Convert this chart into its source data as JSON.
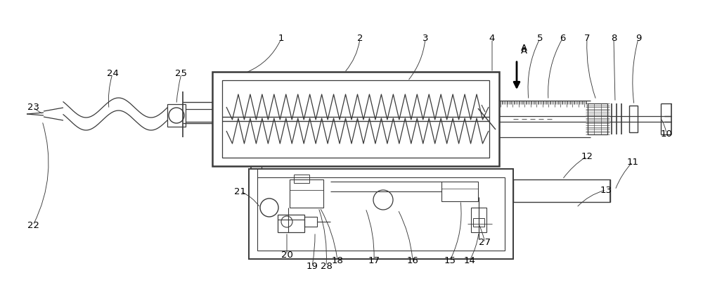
{
  "bg_color": "#ffffff",
  "line_color": "#3a3a3a",
  "lw": 1.0,
  "figsize": [
    10.0,
    4.22
  ],
  "dpi": 100
}
